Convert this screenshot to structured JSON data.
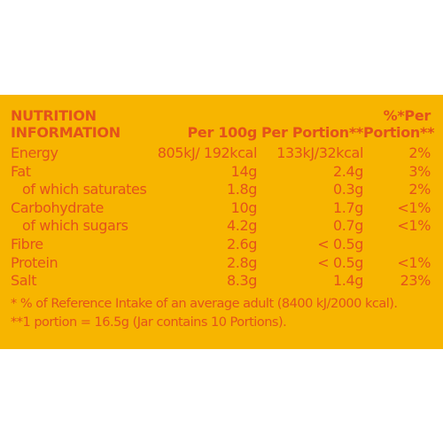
{
  "header": {
    "col0_line1": "NUTRITION",
    "col0_line2": "INFORMATION",
    "col1": "Per 100g",
    "col2": "Per Portion**",
    "col3_line1": "%*Per",
    "col3_line2": "Portion**"
  },
  "rows": [
    {
      "name": "Energy",
      "per100g": "805kJ/ 192kcal",
      "perPortion": "133kJ/32kcal",
      "ri": "2%"
    },
    {
      "name": "Fat",
      "per100g": "14g",
      "perPortion": "2.4g",
      "ri": "3%"
    },
    {
      "name": "of which saturates",
      "per100g": "1.8g",
      "perPortion": "0.3g",
      "ri": "2%"
    },
    {
      "name": "Carbohydrate",
      "per100g": "10g",
      "perPortion": "1.7g",
      "ri": "<1%"
    },
    {
      "name": "of which sugars",
      "per100g": "4.2g",
      "perPortion": "0.7g",
      "ri": "<1%"
    },
    {
      "name": "Fibre",
      "per100g": "2.6g",
      "perPortion": "< 0.5g",
      "ri": ""
    },
    {
      "name": "Protein",
      "per100g": "2.8g",
      "perPortion": "< 0.5g",
      "ri": "<1%"
    },
    {
      "name": "Salt",
      "per100g": "8.3g",
      "perPortion": "1.4g",
      "ri": "23%"
    }
  ],
  "footnotes": {
    "line1": "* % of Reference Intake of an average adult (8400 kJ/2000 kcal).",
    "line2": "**1 portion = 16.5g (Jar contains 10 Portions)."
  },
  "colors": {
    "background": "#f7b500",
    "text": "#e4521b"
  }
}
